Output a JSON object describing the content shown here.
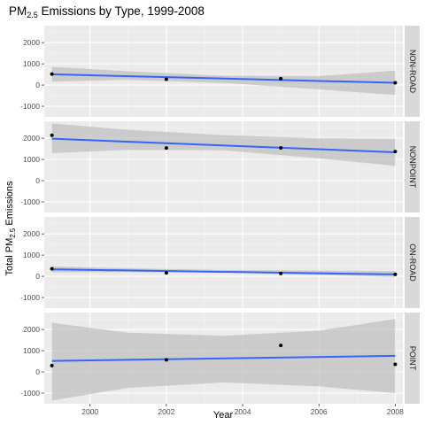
{
  "chart_data": {
    "type": "scatter",
    "title": {
      "main": "PM",
      "sub": "2.5",
      "rest": " Emissions by Type, 1999-2008"
    },
    "xlabel": "Year",
    "ylabel": {
      "main": "Total PM",
      "sub": "2.5",
      "rest": " Emissions"
    },
    "xlim": [
      1998.8,
      2008.2
    ],
    "ylim": [
      -1500,
      2800
    ],
    "x_ticks": [
      2000,
      2002,
      2004,
      2006,
      2008
    ],
    "x_tick_labels": [
      "2000",
      "2002",
      "2004",
      "2006",
      "2008"
    ],
    "y_ticks": [
      -1000,
      0,
      1000,
      2000
    ],
    "y_tick_labels": [
      "-1000",
      "0",
      "1000",
      "2000"
    ],
    "grid": true,
    "smooth_color": "#3366ff",
    "band_color": "#bebebe",
    "panel_bg": "#ebebeb",
    "strip_bg": "#d9d9d9",
    "panels": [
      {
        "name": "NON-ROAD",
        "points": [
          {
            "x": 1999,
            "y": 520
          },
          {
            "x": 2002,
            "y": 275
          },
          {
            "x": 2005,
            "y": 300
          },
          {
            "x": 2008,
            "y": 105
          }
        ],
        "fit": {
          "start": 510,
          "end": 105
        },
        "band": {
          "x": [
            1999,
            2001,
            2003.5,
            2006,
            2008
          ],
          "lower": [
            160,
            250,
            100,
            -200,
            -470
          ],
          "upper": [
            860,
            650,
            440,
            420,
            680
          ]
        }
      },
      {
        "name": "NONPOINT",
        "points": [
          {
            "x": 1999,
            "y": 2140
          },
          {
            "x": 2002,
            "y": 1540
          },
          {
            "x": 2005,
            "y": 1545
          },
          {
            "x": 2008,
            "y": 1375
          }
        ],
        "fit": {
          "start": 1980,
          "end": 1340
        },
        "band": {
          "x": [
            1999,
            2001,
            2003.5,
            2006,
            2008
          ],
          "lower": [
            1300,
            1450,
            1430,
            1050,
            700
          ],
          "upper": [
            2700,
            2400,
            2150,
            2000,
            1980
          ]
        }
      },
      {
        "name": "ON-ROAD",
        "points": [
          {
            "x": 1999,
            "y": 350
          },
          {
            "x": 2002,
            "y": 160
          },
          {
            "x": 2005,
            "y": 135
          },
          {
            "x": 2008,
            "y": 90
          }
        ],
        "fit": {
          "start": 330,
          "end": 90
        },
        "band": {
          "x": [
            1999,
            2001,
            2003.5,
            2006,
            2008
          ],
          "lower": [
            190,
            200,
            180,
            60,
            -30
          ],
          "upper": [
            470,
            380,
            300,
            270,
            240
          ]
        }
      },
      {
        "name": "POINT",
        "points": [
          {
            "x": 1999,
            "y": 300
          },
          {
            "x": 2002,
            "y": 570
          },
          {
            "x": 2005,
            "y": 1250
          },
          {
            "x": 2008,
            "y": 360
          }
        ],
        "fit": {
          "start": 520,
          "end": 760
        },
        "band": {
          "x": [
            1999,
            2001,
            2003.5,
            2006,
            2008
          ],
          "lower": [
            -1350,
            -750,
            -500,
            -680,
            -1000
          ],
          "upper": [
            2320,
            1850,
            1700,
            1950,
            2500
          ]
        }
      }
    ]
  }
}
